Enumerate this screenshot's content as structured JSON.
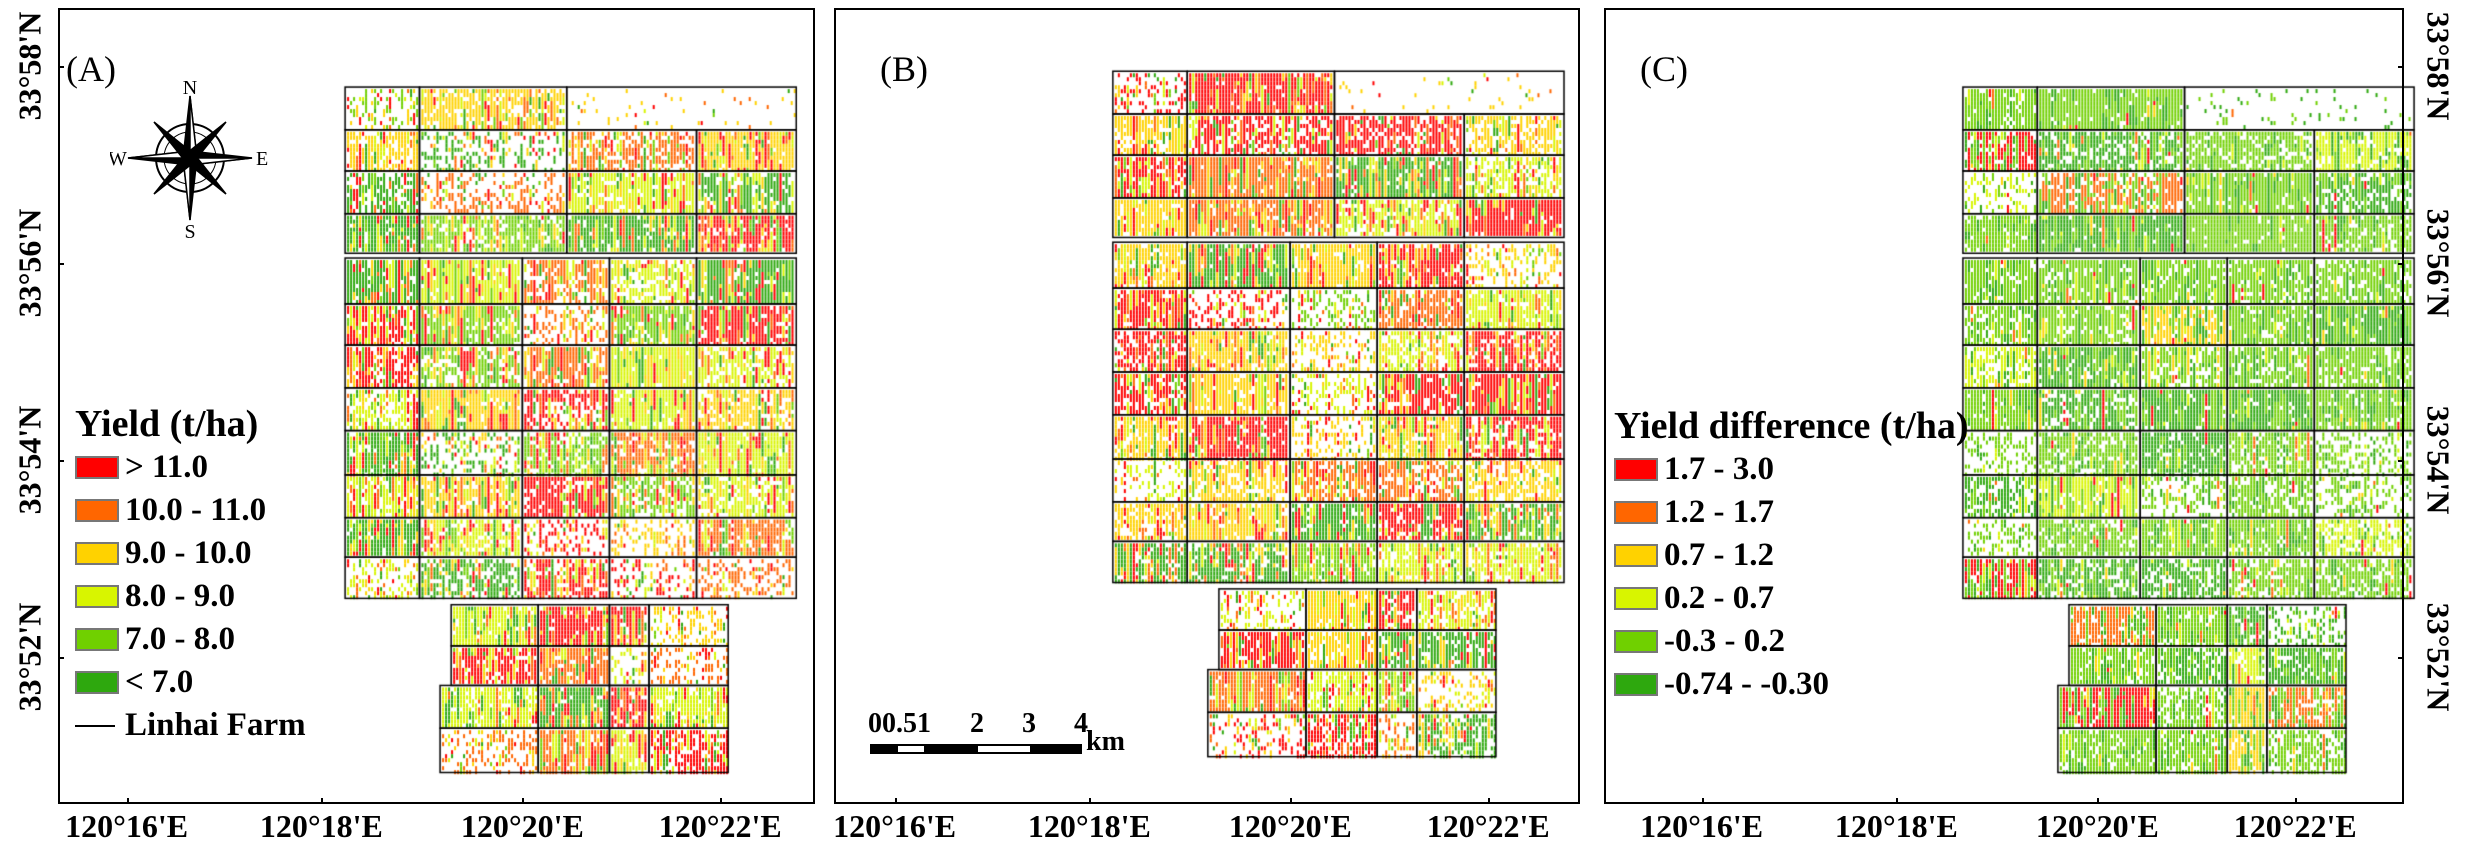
{
  "panels": [
    {
      "label": "(A)"
    },
    {
      "label": "(B)"
    },
    {
      "label": "(C)"
    }
  ],
  "x_ticks": [
    "120°16'E",
    "120°18'E",
    "120°20'E",
    "120°22'E"
  ],
  "y_ticks": [
    "33°58'N",
    "33°56'N",
    "33°54'N",
    "33°52'N"
  ],
  "compass": {
    "n": "N",
    "s": "S",
    "e": "E",
    "w": "W"
  },
  "legend_yield": {
    "title": "Yield (t/ha)",
    "items": [
      {
        "label": "> 11.0",
        "color": "#ff0000"
      },
      {
        "label": "10.0 - 11.0",
        "color": "#ff6600"
      },
      {
        "label": "9.0 - 10.0",
        "color": "#ffd200"
      },
      {
        "label": "8.0 - 9.0",
        "color": "#d8f500"
      },
      {
        "label": "7.0 - 8.0",
        "color": "#70d000"
      },
      {
        "label": "< 7.0",
        "color": "#2ea80e"
      }
    ],
    "boundary_label": "Linhai  Farm"
  },
  "legend_diff": {
    "title": "Yield difference (t/ha)",
    "items": [
      {
        "label": "1.7 - 3.0",
        "color": "#ff0000"
      },
      {
        "label": "1.2 - 1.7",
        "color": "#ff6600"
      },
      {
        "label": "0.7 - 1.2",
        "color": "#ffd200"
      },
      {
        "label": "0.2 - 0.7",
        "color": "#d8f500"
      },
      {
        "label": "-0.3 - 0.2",
        "color": "#70d000"
      },
      {
        "label": "-0.74 - -0.30",
        "color": "#2ea80e"
      }
    ]
  },
  "scale_bar": {
    "labels": [
      "00.51",
      "2",
      "3",
      "4"
    ],
    "unit": "km"
  }
}
